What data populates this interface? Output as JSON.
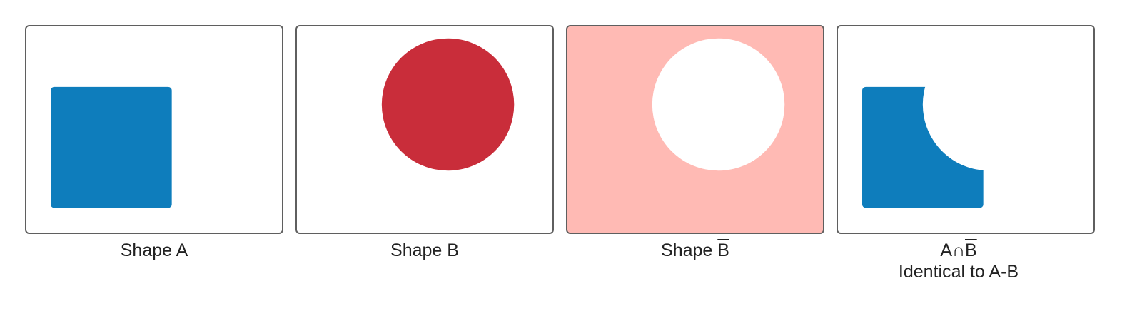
{
  "colors": {
    "shape_a": "#0e7dbc",
    "shape_b": "#c92d3a",
    "complement_b": "#ffbab4",
    "panel_border": "#5f5f5f",
    "background": "#ffffff"
  },
  "panels": [
    {
      "caption": "Shape A"
    },
    {
      "caption": "Shape B"
    },
    {
      "caption_prefix": "Shape ",
      "caption_bar": "B"
    },
    {
      "caption_prefix": "A∩",
      "caption_bar": "B",
      "caption_line2": "Identical to A-B"
    }
  ]
}
